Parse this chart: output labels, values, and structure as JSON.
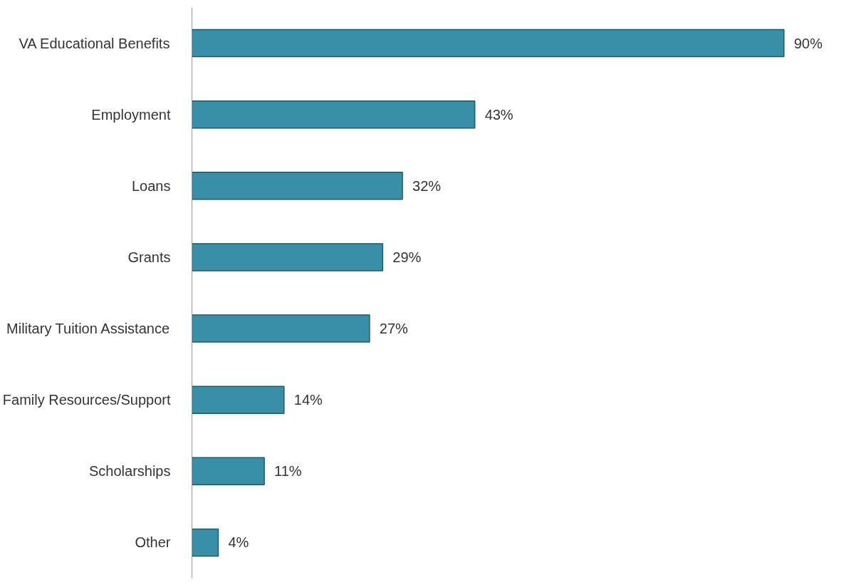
{
  "chart_data": {
    "type": "bar",
    "orientation": "horizontal",
    "categories": [
      "VA Educational Benefits",
      "Employment",
      "Loans",
      "Grants",
      "Military Tuition Assistance",
      "Family Resources/Support",
      "Scholarships",
      "Other"
    ],
    "values": [
      90,
      43,
      32,
      29,
      27,
      14,
      11,
      4
    ],
    "value_labels": [
      "90%",
      "43%",
      "32%",
      "29%",
      "27%",
      "14%",
      "11%",
      "4%"
    ],
    "color": "#3a8fa8",
    "tick_labels": "y",
    "grid": false
  }
}
